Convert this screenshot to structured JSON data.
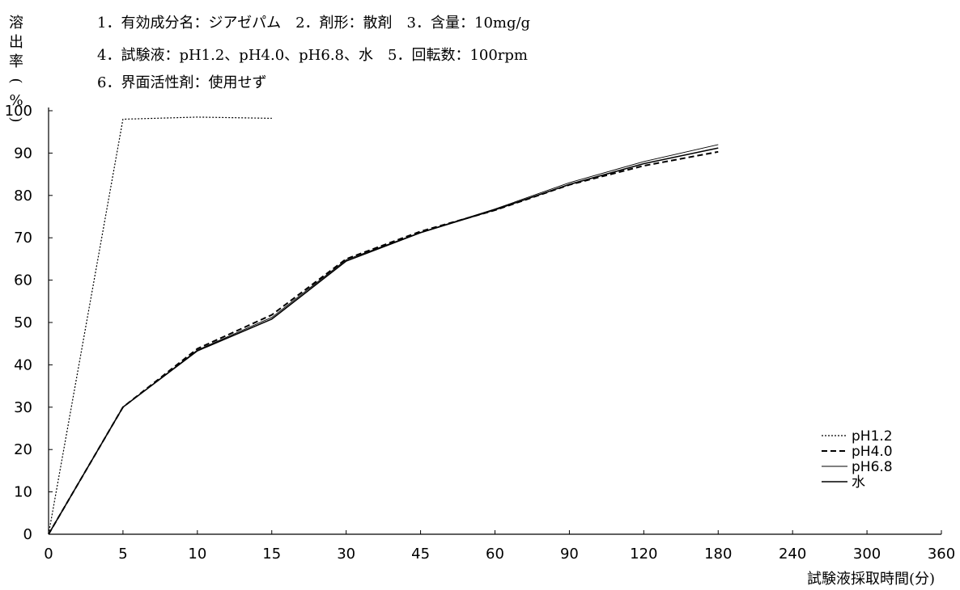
{
  "conditions": [
    "1．有効成分名：ジアゼパム　2．剤形：散剤　3．含量：10mg/g",
    "4．試験液：pH1.2、pH4.0、pH6.8、水　5．回転数：100rpm",
    "6．界面活性剤：使用せず"
  ],
  "chart_data": {
    "type": "line",
    "ylabel": "溶出率(%)",
    "xlabel": "試験液採取時間(分)",
    "categories": [
      "0",
      "5",
      "10",
      "15",
      "30",
      "45",
      "60",
      "90",
      "120",
      "180",
      "240",
      "300",
      "360"
    ],
    "yticks": [
      "0",
      "10",
      "20",
      "30",
      "40",
      "50",
      "60",
      "70",
      "80",
      "90",
      "100"
    ],
    "ylim": [
      0,
      100
    ],
    "grid": false,
    "legend_position": "bottom-right",
    "series": [
      {
        "name": "pH1.2",
        "style": "dotted",
        "x": [
          "0",
          "5",
          "10",
          "15"
        ],
        "values": [
          0,
          98,
          98.5,
          98.2
        ]
      },
      {
        "name": "pH4.0",
        "style": "dashed",
        "x": [
          "0",
          "5",
          "10",
          "15",
          "30",
          "45",
          "60",
          "90",
          "120",
          "180"
        ],
        "values": [
          0,
          30,
          43.8,
          51.8,
          65,
          71.5,
          76.5,
          82.5,
          87,
          90.3
        ]
      },
      {
        "name": "pH6.8",
        "style": "thin",
        "x": [
          "0",
          "5",
          "10",
          "15",
          "30",
          "45",
          "60",
          "90",
          "120",
          "180"
        ],
        "values": [
          0,
          30,
          43.5,
          51.2,
          64.8,
          71.3,
          76.8,
          83,
          88,
          92
        ]
      },
      {
        "name": "水",
        "style": "solid",
        "x": [
          "0",
          "5",
          "10",
          "15",
          "30",
          "45",
          "60",
          "90",
          "120",
          "180"
        ],
        "values": [
          0,
          30,
          43.3,
          50.8,
          64.5,
          71.2,
          76.6,
          82.6,
          87.5,
          91.2
        ]
      }
    ]
  }
}
